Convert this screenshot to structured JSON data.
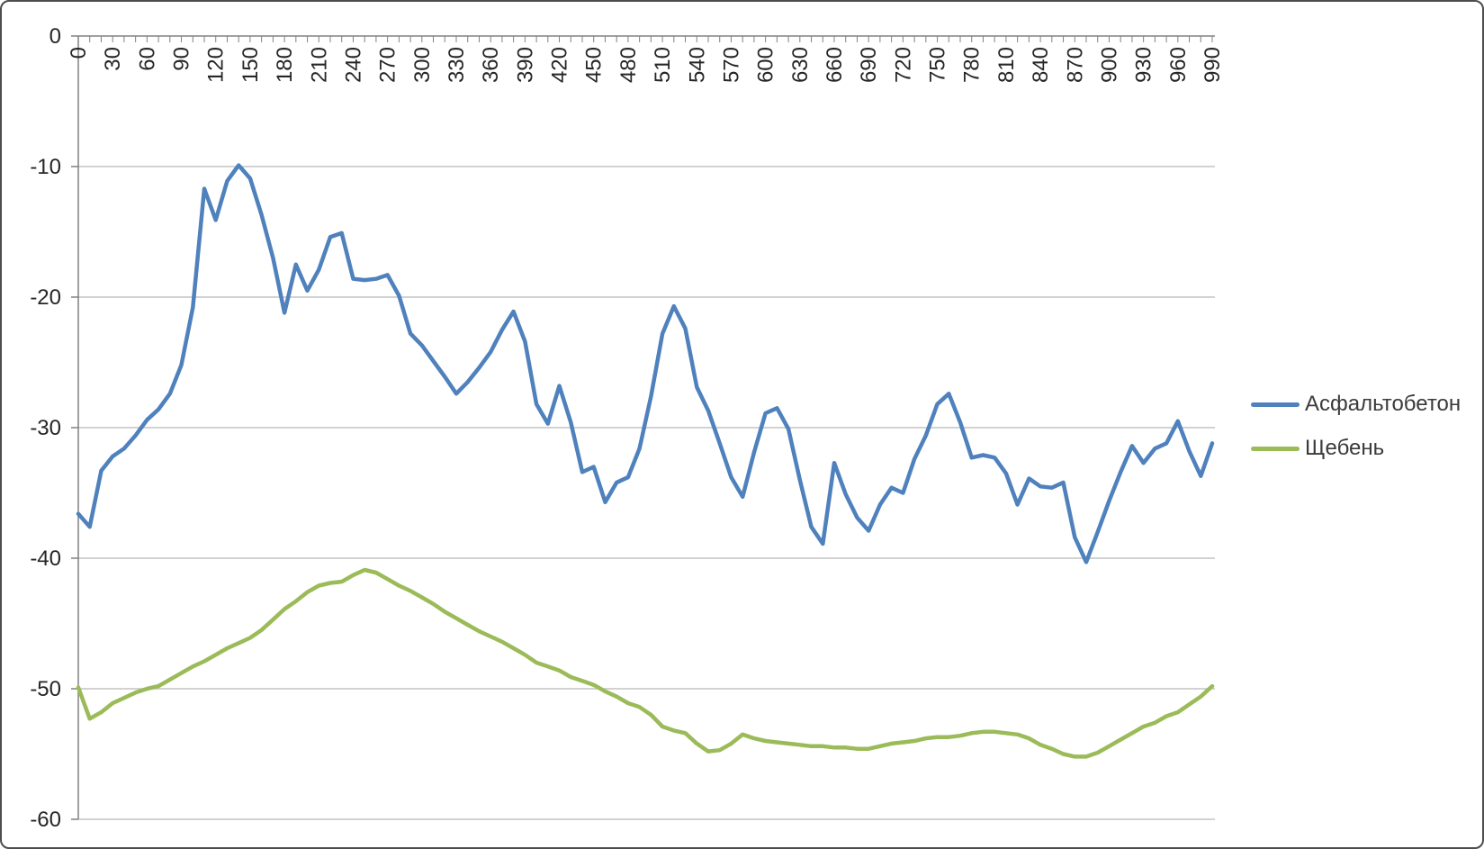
{
  "chart_data": {
    "type": "line",
    "title": "",
    "xlabel": "",
    "ylabel": "",
    "xlim": [
      0,
      990
    ],
    "ylim": [
      -60,
      0
    ],
    "grid": true,
    "legend_position": "right",
    "x_step": 10,
    "x_tick_labels": [
      0,
      30,
      60,
      90,
      120,
      150,
      180,
      210,
      240,
      270,
      300,
      330,
      360,
      390,
      420,
      450,
      480,
      510,
      540,
      570,
      600,
      630,
      660,
      690,
      720,
      750,
      780,
      810,
      840,
      870,
      900,
      930,
      960,
      990
    ],
    "y_ticks": [
      0,
      -10,
      -20,
      -30,
      -40,
      -50,
      -60
    ],
    "x": [
      0,
      10,
      20,
      30,
      40,
      50,
      60,
      70,
      80,
      90,
      100,
      110,
      120,
      130,
      140,
      150,
      160,
      170,
      180,
      190,
      200,
      210,
      220,
      230,
      240,
      250,
      260,
      270,
      280,
      290,
      300,
      310,
      320,
      330,
      340,
      350,
      360,
      370,
      380,
      390,
      400,
      410,
      420,
      430,
      440,
      450,
      460,
      470,
      480,
      490,
      500,
      510,
      520,
      530,
      540,
      550,
      560,
      570,
      580,
      590,
      600,
      610,
      620,
      630,
      640,
      650,
      660,
      670,
      680,
      690,
      700,
      710,
      720,
      730,
      740,
      750,
      760,
      770,
      780,
      790,
      800,
      810,
      820,
      830,
      840,
      850,
      860,
      870,
      880,
      890,
      900,
      910,
      920,
      930,
      940,
      950,
      960,
      970,
      980,
      990
    ],
    "series": [
      {
        "name": "Асфальтобетон",
        "color": "#4F81BD",
        "values": [
          -36.6,
          -37.6,
          -33.3,
          -32.2,
          -31.6,
          -30.6,
          -29.4,
          -28.6,
          -27.4,
          -25.2,
          -20.8,
          -11.7,
          -14.1,
          -11.1,
          -9.9,
          -10.9,
          -13.7,
          -17.0,
          -21.2,
          -17.5,
          -19.5,
          -17.9,
          -15.4,
          -15.1,
          -18.6,
          -18.7,
          -18.6,
          -18.3,
          -19.9,
          -22.8,
          -23.7,
          -24.9,
          -26.1,
          -27.4,
          -26.5,
          -25.4,
          -24.2,
          -22.5,
          -21.1,
          -23.4,
          -28.2,
          -29.7,
          -26.8,
          -29.6,
          -33.4,
          -33.0,
          -35.7,
          -34.2,
          -33.8,
          -31.6,
          -27.6,
          -22.8,
          -20.7,
          -22.4,
          -26.9,
          -28.7,
          -31.2,
          -33.8,
          -35.3,
          -31.9,
          -28.9,
          -28.5,
          -30.1,
          -34.0,
          -37.6,
          -38.9,
          -32.7,
          -35.1,
          -36.9,
          -37.9,
          -35.9,
          -34.6,
          -35.0,
          -32.4,
          -30.6,
          -28.2,
          -27.4,
          -29.6,
          -32.3,
          -32.1,
          -32.3,
          -33.5,
          -35.9,
          -33.9,
          -34.5,
          -34.6,
          -34.2,
          -38.4,
          -40.3,
          -38.0,
          -35.6,
          -33.4,
          -31.4,
          -32.7,
          -31.6,
          -31.2,
          -29.5,
          -31.8,
          -33.7,
          -31.2
        ]
      },
      {
        "name": "Щебень",
        "color": "#9BBB59",
        "values": [
          -49.9,
          -52.3,
          -51.8,
          -51.1,
          -50.7,
          -50.3,
          -50.0,
          -49.8,
          -49.3,
          -48.8,
          -48.3,
          -47.9,
          -47.4,
          -46.9,
          -46.5,
          -46.1,
          -45.5,
          -44.7,
          -43.9,
          -43.3,
          -42.6,
          -42.1,
          -41.9,
          -41.8,
          -41.3,
          -40.9,
          -41.1,
          -41.6,
          -42.1,
          -42.5,
          -43.0,
          -43.5,
          -44.1,
          -44.6,
          -45.1,
          -45.6,
          -46.0,
          -46.4,
          -46.9,
          -47.4,
          -48.0,
          -48.3,
          -48.6,
          -49.1,
          -49.4,
          -49.7,
          -50.2,
          -50.6,
          -51.1,
          -51.4,
          -52.0,
          -52.9,
          -53.2,
          -53.4,
          -54.2,
          -54.8,
          -54.7,
          -54.2,
          -53.5,
          -53.8,
          -54.0,
          -54.1,
          -54.2,
          -54.3,
          -54.4,
          -54.4,
          -54.5,
          -54.5,
          -54.6,
          -54.6,
          -54.4,
          -54.2,
          -54.1,
          -54.0,
          -53.8,
          -53.7,
          -53.7,
          -53.6,
          -53.4,
          -53.3,
          -53.3,
          -53.4,
          -53.5,
          -53.8,
          -54.3,
          -54.6,
          -55.0,
          -55.2,
          -55.2,
          -54.9,
          -54.4,
          -53.9,
          -53.4,
          -52.9,
          -52.6,
          -52.1,
          -51.8,
          -51.2,
          -50.6,
          -49.8
        ]
      }
    ]
  },
  "legend": {
    "items": [
      {
        "label": "Асфальтобетон",
        "color": "#4F81BD"
      },
      {
        "label": "Щебень",
        "color": "#9BBB59"
      }
    ]
  },
  "colors": {
    "gridline": "#C3C3C3",
    "axis": "#808080",
    "tick_text": "#262626",
    "background": "#FFFFFF",
    "border": "#4D4D4D"
  }
}
